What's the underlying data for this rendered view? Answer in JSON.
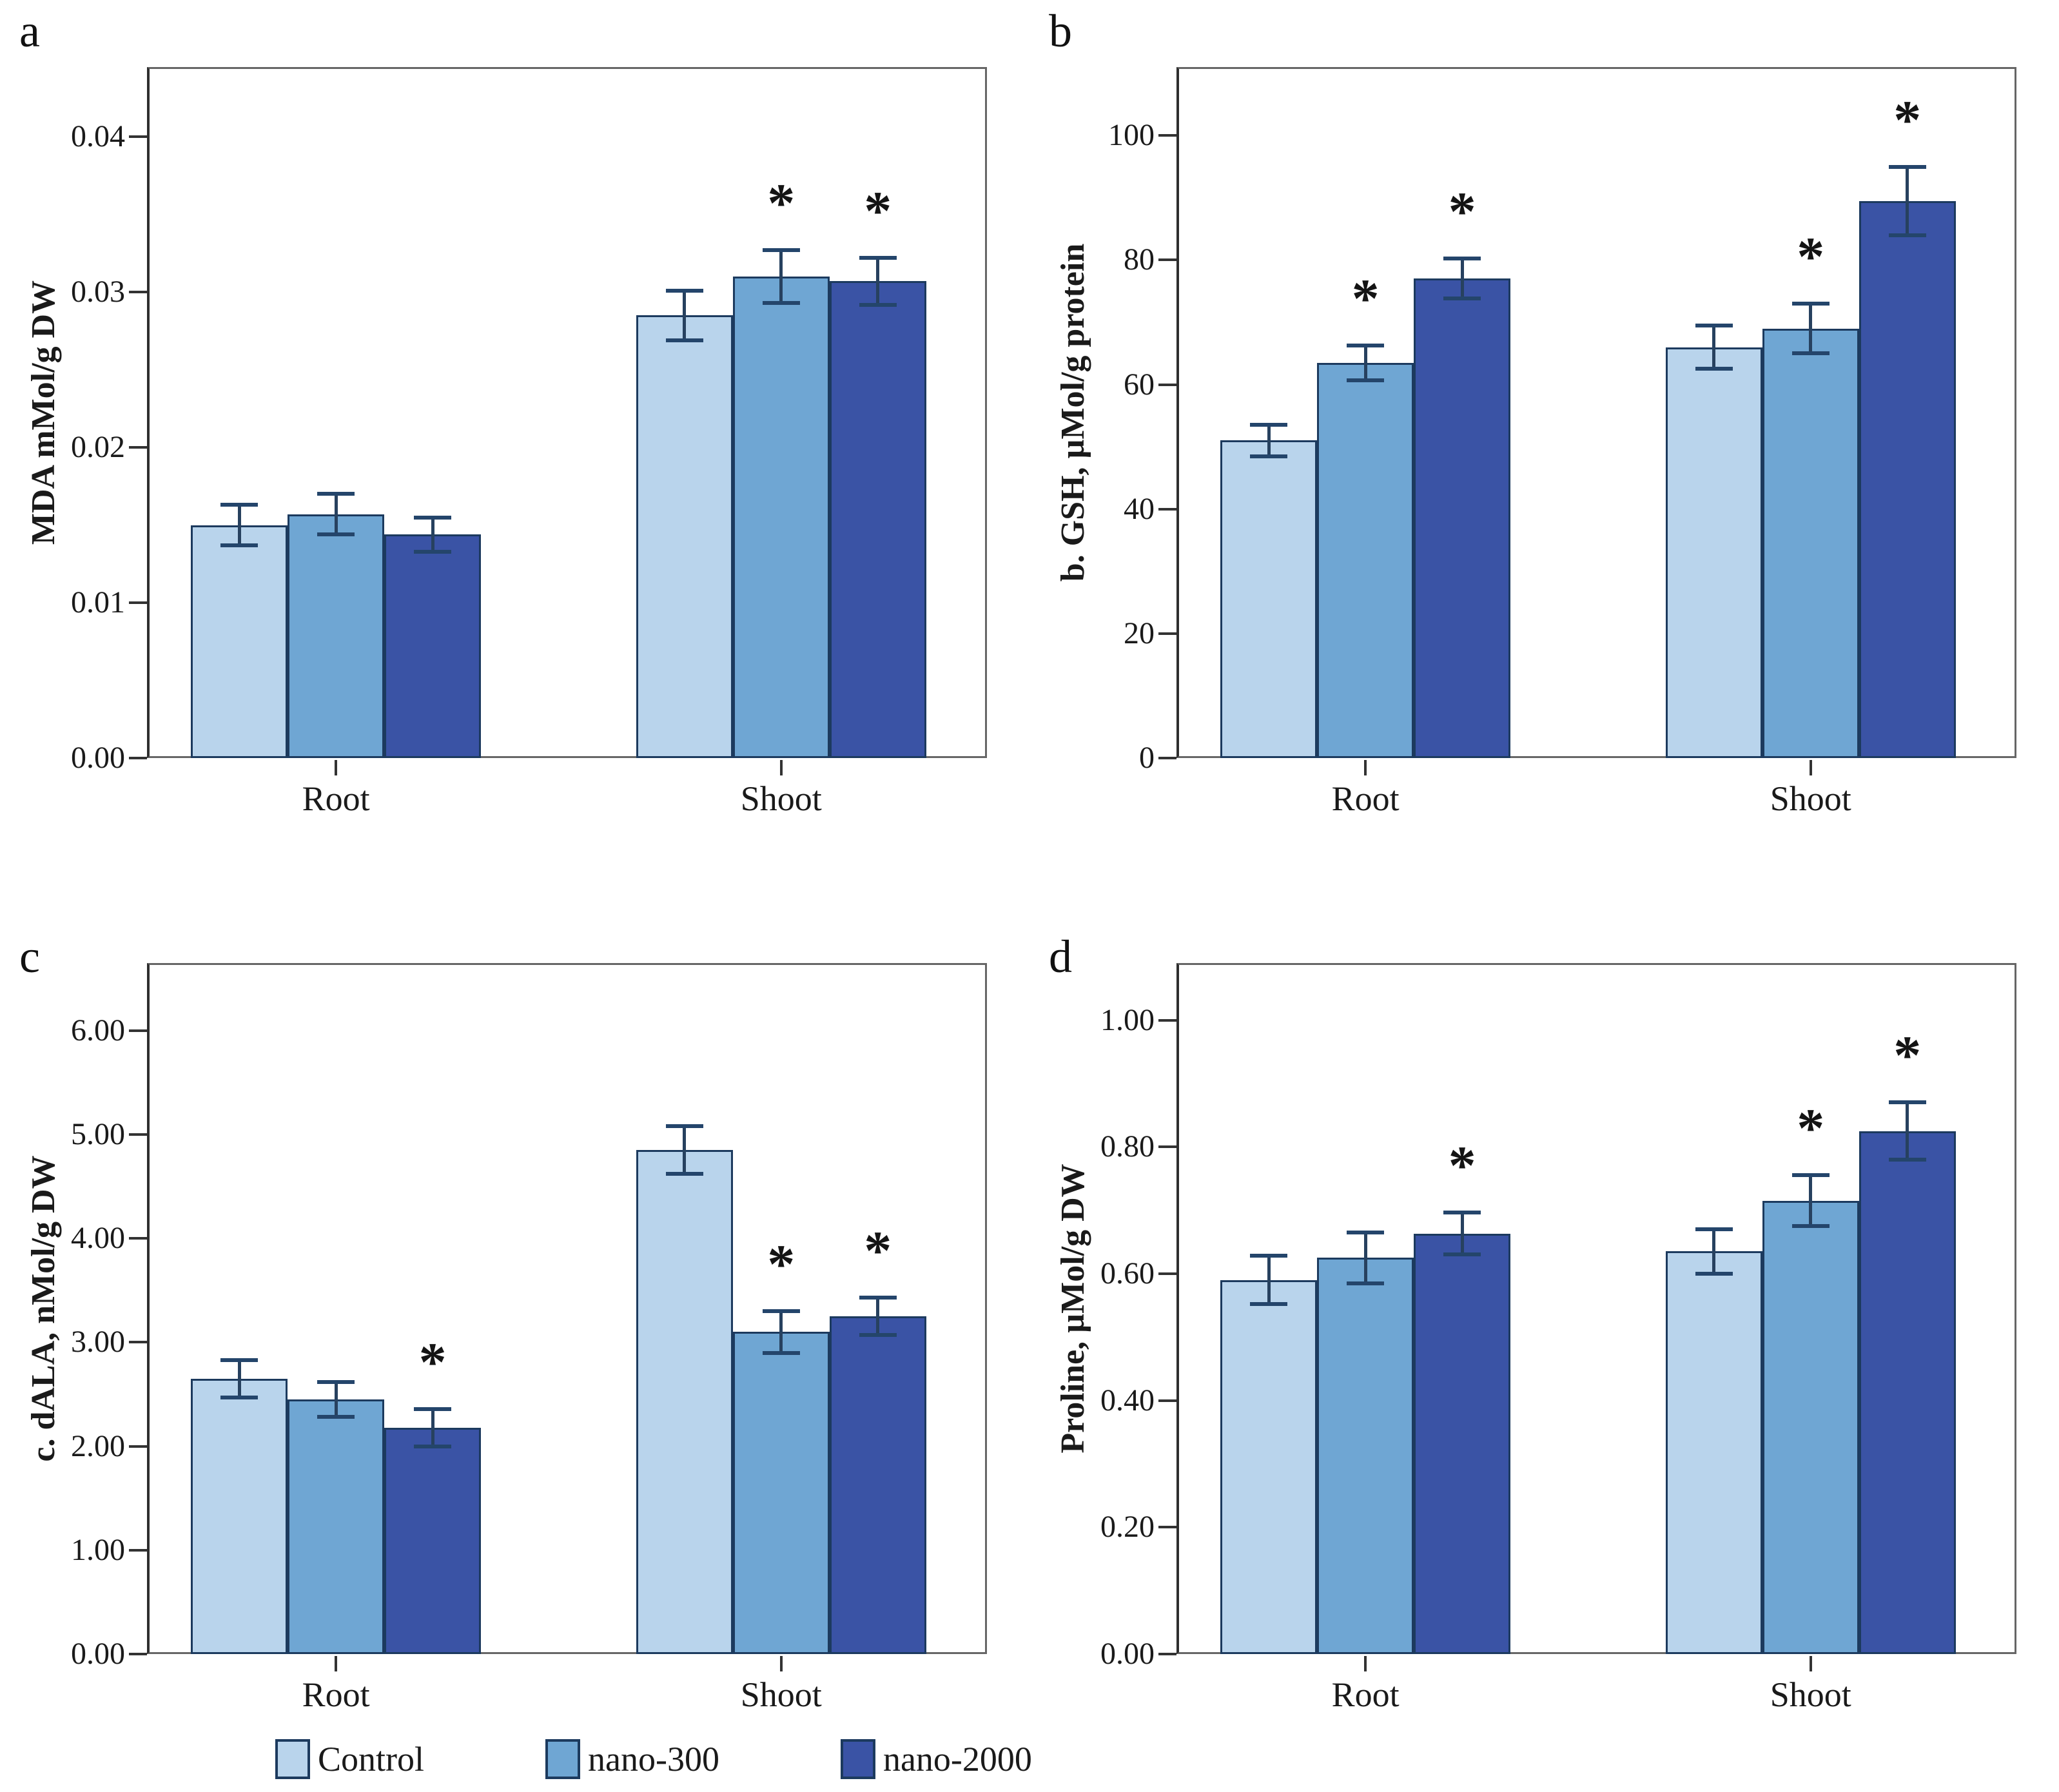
{
  "figure_title": "Four-panel bar chart figure: oxidative stress and osmolyte markers in Root and Shoot",
  "legend": {
    "items": [
      {
        "label": "Control",
        "color": "#b9d4ec"
      },
      {
        "label": "nano-300",
        "color": "#6fa6d3"
      },
      {
        "label": "nano-2000",
        "color": "#3a53a5"
      }
    ]
  },
  "styles": {
    "bar_border": "#1c3a5e",
    "error_bar_color": "#27415f",
    "axis_color": "#2e2e2e",
    "frame_color": "#666666",
    "background": "#ffffff",
    "significance_marker": "*"
  },
  "chart_data": [
    {
      "id": "a",
      "type": "bar",
      "panel_letter": "a",
      "title": "",
      "xlabel": "",
      "ylabel": "MDA mMol/g DW",
      "ylim": [
        0,
        0.0445
      ],
      "yticks": [
        "0.00",
        "0.01",
        "0.02",
        "0.03",
        "0.04"
      ],
      "categories": [
        "Root",
        "Shoot"
      ],
      "grid": false,
      "series": [
        {
          "name": "Control",
          "values": [
            0.015,
            0.0285
          ],
          "errors": [
            0.0013,
            0.0016
          ],
          "sig": [
            false,
            false
          ]
        },
        {
          "name": "nano-300",
          "values": [
            0.0157,
            0.031
          ],
          "errors": [
            0.0013,
            0.0017
          ],
          "sig": [
            false,
            true
          ]
        },
        {
          "name": "nano-2000",
          "values": [
            0.0144,
            0.0307
          ],
          "errors": [
            0.0011,
            0.0015
          ],
          "sig": [
            false,
            true
          ]
        }
      ]
    },
    {
      "id": "b",
      "type": "bar",
      "panel_letter": "b",
      "title": "",
      "xlabel": "",
      "ylabel": "b. GSH, µMol/g protein",
      "ylim": [
        0,
        111
      ],
      "yticks": [
        "0",
        "20",
        "40",
        "60",
        "80",
        "100"
      ],
      "categories": [
        "Root",
        "Shoot"
      ],
      "grid": false,
      "series": [
        {
          "name": "Control",
          "values": [
            51.0,
            66.0
          ],
          "errors": [
            2.5,
            3.5
          ],
          "sig": [
            false,
            false
          ]
        },
        {
          "name": "nano-300",
          "values": [
            63.5,
            69.0
          ],
          "errors": [
            2.8,
            4.0
          ],
          "sig": [
            true,
            true
          ]
        },
        {
          "name": "nano-2000",
          "values": [
            77.0,
            89.5
          ],
          "errors": [
            3.2,
            5.5
          ],
          "sig": [
            true,
            true
          ]
        }
      ]
    },
    {
      "id": "c",
      "type": "bar",
      "panel_letter": "c",
      "title": "",
      "xlabel": "",
      "ylabel": "c. dALA, nMol/g DW",
      "ylim": [
        0,
        6.65
      ],
      "yticks": [
        "0.00",
        "1.00",
        "2.00",
        "3.00",
        "4.00",
        "5.00",
        "6.00"
      ],
      "categories": [
        "Root",
        "Shoot"
      ],
      "grid": false,
      "series": [
        {
          "name": "Control",
          "values": [
            2.65,
            4.85
          ],
          "errors": [
            0.18,
            0.23
          ],
          "sig": [
            false,
            false
          ]
        },
        {
          "name": "nano-300",
          "values": [
            2.45,
            3.1
          ],
          "errors": [
            0.17,
            0.2
          ],
          "sig": [
            false,
            true
          ]
        },
        {
          "name": "nano-2000",
          "values": [
            2.18,
            3.25
          ],
          "errors": [
            0.18,
            0.18
          ],
          "sig": [
            true,
            true
          ]
        }
      ]
    },
    {
      "id": "d",
      "type": "bar",
      "panel_letter": "d",
      "title": "",
      "xlabel": "",
      "ylabel": "Proline, µMol/g DW",
      "ylim": [
        0,
        1.09
      ],
      "yticks": [
        "0.00",
        "0.20",
        "0.40",
        "0.60",
        "0.80",
        "1.00"
      ],
      "categories": [
        "Root",
        "Shoot"
      ],
      "grid": false,
      "series": [
        {
          "name": "Control",
          "values": [
            0.59,
            0.635
          ],
          "errors": [
            0.038,
            0.035
          ],
          "sig": [
            false,
            false
          ]
        },
        {
          "name": "nano-300",
          "values": [
            0.625,
            0.715
          ],
          "errors": [
            0.04,
            0.04
          ],
          "sig": [
            false,
            true
          ]
        },
        {
          "name": "nano-2000",
          "values": [
            0.663,
            0.825
          ],
          "errors": [
            0.033,
            0.045
          ],
          "sig": [
            true,
            true
          ]
        }
      ]
    }
  ]
}
